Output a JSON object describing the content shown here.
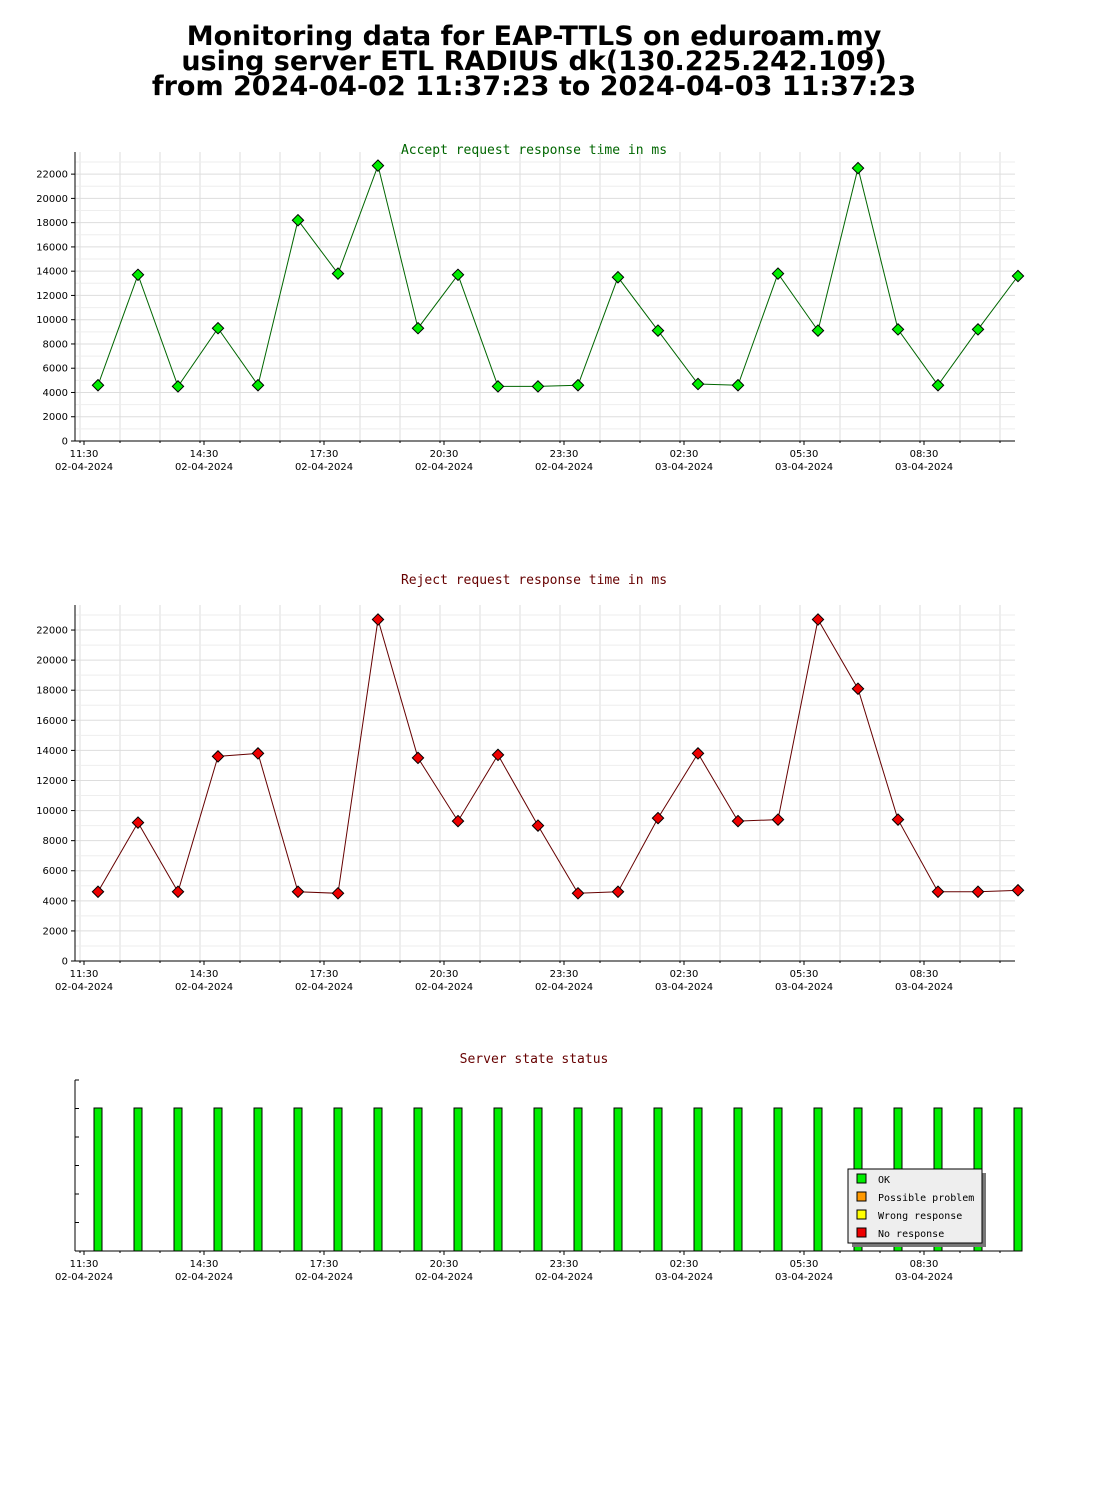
{
  "header": {
    "line1": "Monitoring data for EAP-TTLS on eduroam.my",
    "line2": "using server ETL RADIUS dk(130.225.242.109)",
    "line3": "from 2024-04-02 11:37:23 to 2024-04-03 11:37:23"
  },
  "x_ticks": [
    {
      "time": "11:30",
      "date": "02-04-2024"
    },
    {
      "time": "14:30",
      "date": "02-04-2024"
    },
    {
      "time": "17:30",
      "date": "02-04-2024"
    },
    {
      "time": "20:30",
      "date": "02-04-2024"
    },
    {
      "time": "23:30",
      "date": "02-04-2024"
    },
    {
      "time": "02:30",
      "date": "03-04-2024"
    },
    {
      "time": "05:30",
      "date": "03-04-2024"
    },
    {
      "time": "08:30",
      "date": "03-04-2024"
    }
  ],
  "colors": {
    "accept_line": "#006600",
    "accept_marker": "#00ee00",
    "reject_line": "#660000",
    "reject_marker": "#ee0000",
    "ok": "#00ee00",
    "possible_problem": "#ff9900",
    "wrong_response": "#ffff00",
    "no_response": "#ee0000",
    "accept_title": "#006600",
    "reject_title": "#660000",
    "status_title": "#660000"
  },
  "chart_data": [
    {
      "type": "line",
      "title": "Accept request response time in ms",
      "x_range": [
        "2024-04-02 11:30",
        "2024-04-03 11:37"
      ],
      "ylim": [
        0,
        23000
      ],
      "y_ticks": [
        0,
        2000,
        4000,
        6000,
        8000,
        10000,
        12000,
        14000,
        16000,
        18000,
        20000,
        22000
      ],
      "grid": true,
      "x": [
        "2024-04-02 11:51",
        "2024-04-02 12:51",
        "2024-04-02 13:51",
        "2024-04-02 14:51",
        "2024-04-02 15:51",
        "2024-04-02 16:51",
        "2024-04-02 17:51",
        "2024-04-02 18:51",
        "2024-04-02 19:51",
        "2024-04-02 20:51",
        "2024-04-02 21:51",
        "2024-04-02 22:51",
        "2024-04-02 23:51",
        "2024-04-03 00:51",
        "2024-04-03 01:51",
        "2024-04-03 02:51",
        "2024-04-03 03:51",
        "2024-04-03 04:51",
        "2024-04-03 05:51",
        "2024-04-03 06:51",
        "2024-04-03 07:51",
        "2024-04-03 08:51",
        "2024-04-03 09:51",
        "2024-04-03 10:51"
      ],
      "series": [
        {
          "values": [
            4600,
            13700,
            4500,
            9300,
            4600,
            18200,
            13800,
            22700,
            9300,
            13700,
            4500,
            4500,
            4600,
            13500,
            9100,
            4700,
            4600,
            13800,
            9100,
            22500,
            9200,
            4600,
            9200,
            13600
          ]
        }
      ]
    },
    {
      "type": "line",
      "title": "Reject request response time in ms",
      "x_range": [
        "2024-04-02 11:30",
        "2024-04-03 11:37"
      ],
      "ylim": [
        0,
        23000
      ],
      "y_ticks": [
        0,
        2000,
        4000,
        6000,
        8000,
        10000,
        12000,
        14000,
        16000,
        18000,
        20000,
        22000
      ],
      "grid": true,
      "x": [
        "2024-04-02 11:51",
        "2024-04-02 12:51",
        "2024-04-02 13:51",
        "2024-04-02 14:51",
        "2024-04-02 15:51",
        "2024-04-02 16:51",
        "2024-04-02 17:51",
        "2024-04-02 18:51",
        "2024-04-02 19:51",
        "2024-04-02 20:51",
        "2024-04-02 21:51",
        "2024-04-02 22:51",
        "2024-04-02 23:51",
        "2024-04-03 00:51",
        "2024-04-03 01:51",
        "2024-04-03 02:51",
        "2024-04-03 03:51",
        "2024-04-03 04:51",
        "2024-04-03 05:51",
        "2024-04-03 06:51",
        "2024-04-03 07:51",
        "2024-04-03 08:51",
        "2024-04-03 09:51",
        "2024-04-03 10:51"
      ],
      "series": [
        {
          "values": [
            4600,
            9200,
            4600,
            13600,
            13800,
            4600,
            4500,
            22700,
            13500,
            9300,
            13700,
            9000,
            4500,
            4600,
            9500,
            13800,
            9300,
            9400,
            22700,
            18100,
            9400,
            4600,
            4600,
            4700
          ]
        }
      ]
    },
    {
      "type": "bar",
      "title": "Server state status",
      "x_range": [
        "2024-04-02 11:30",
        "2024-04-03 11:37"
      ],
      "grid": false,
      "legend_position": "bottom-right",
      "legend": [
        "OK",
        "Possible problem",
        "Wrong response",
        "No response"
      ],
      "x": [
        "2024-04-02 11:51",
        "2024-04-02 12:51",
        "2024-04-02 13:51",
        "2024-04-02 14:51",
        "2024-04-02 15:51",
        "2024-04-02 16:51",
        "2024-04-02 17:51",
        "2024-04-02 18:51",
        "2024-04-02 19:51",
        "2024-04-02 20:51",
        "2024-04-02 21:51",
        "2024-04-02 22:51",
        "2024-04-02 23:51",
        "2024-04-03 00:51",
        "2024-04-03 01:51",
        "2024-04-03 02:51",
        "2024-04-03 03:51",
        "2024-04-03 04:51",
        "2024-04-03 05:51",
        "2024-04-03 06:51",
        "2024-04-03 07:51",
        "2024-04-03 08:51",
        "2024-04-03 09:51",
        "2024-04-03 10:51"
      ],
      "status": [
        "OK",
        "OK",
        "OK",
        "OK",
        "OK",
        "OK",
        "OK",
        "OK",
        "OK",
        "OK",
        "OK",
        "OK",
        "OK",
        "OK",
        "OK",
        "OK",
        "OK",
        "OK",
        "OK",
        "OK",
        "OK",
        "OK",
        "OK",
        "OK"
      ]
    }
  ]
}
